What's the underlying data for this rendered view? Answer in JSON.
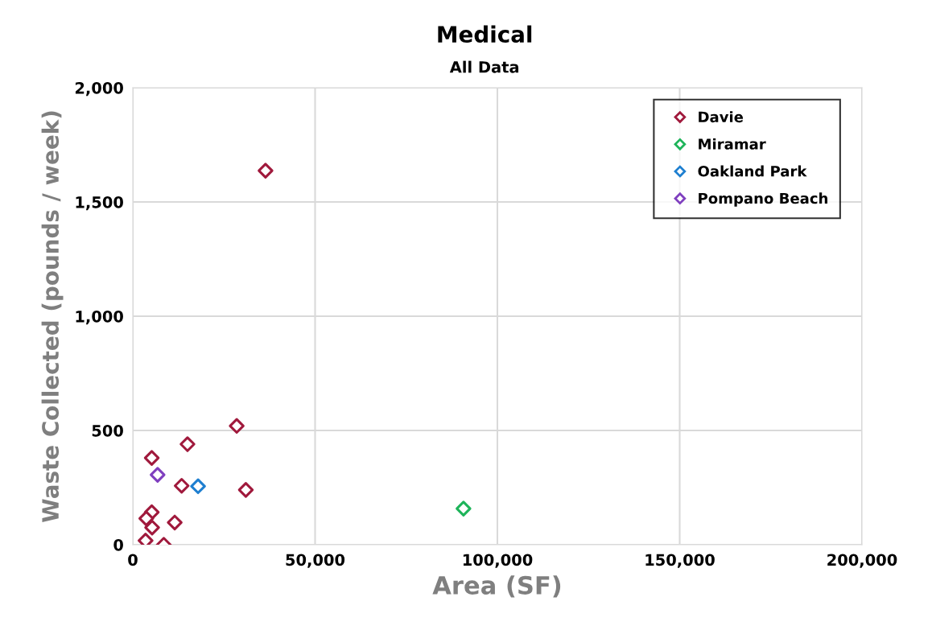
{
  "chart_data": {
    "type": "scatter",
    "title": "Medical",
    "subtitle": "All Data",
    "xlabel": "Area (SF)",
    "ylabel": "Waste Collected (pounds / week)",
    "xlim": [
      0,
      200000
    ],
    "xticks": [
      {
        "value": 0,
        "label": "0"
      },
      {
        "value": 50000,
        "label": "50,000"
      },
      {
        "value": 100000,
        "label": "100,000"
      },
      {
        "value": 150000,
        "label": "150,000"
      },
      {
        "value": 200000,
        "label": "200,000"
      }
    ],
    "ylim": [
      0,
      2000
    ],
    "yticks": [
      {
        "value": 0,
        "label": "0"
      },
      {
        "value": 500,
        "label": "500"
      },
      {
        "value": 1000,
        "label": "1,000"
      },
      {
        "value": 1500,
        "label": "1,500"
      },
      {
        "value": 2000,
        "label": "2,000"
      }
    ],
    "grid": true,
    "legend": "top right",
    "marker": "diamond",
    "series": [
      {
        "name": "Davie",
        "color": "#a0193c",
        "x": [
          36400,
          28500,
          15000,
          5200,
          13400,
          31000,
          5200,
          3700,
          5300,
          11500,
          3500,
          8500
        ],
        "values": [
          1637,
          520,
          440,
          380,
          258,
          240,
          142,
          115,
          75,
          97,
          18,
          0
        ]
      },
      {
        "name": "Miramar",
        "color": "#1eb45a",
        "x": [
          90700
        ],
        "values": [
          158
        ]
      },
      {
        "name": "Oakland Park",
        "color": "#1e7fd0",
        "x": [
          17900
        ],
        "values": [
          256
        ]
      },
      {
        "name": "Pompano Beach",
        "color": "#7f3fbf",
        "x": [
          6800
        ],
        "values": [
          306
        ]
      }
    ]
  }
}
